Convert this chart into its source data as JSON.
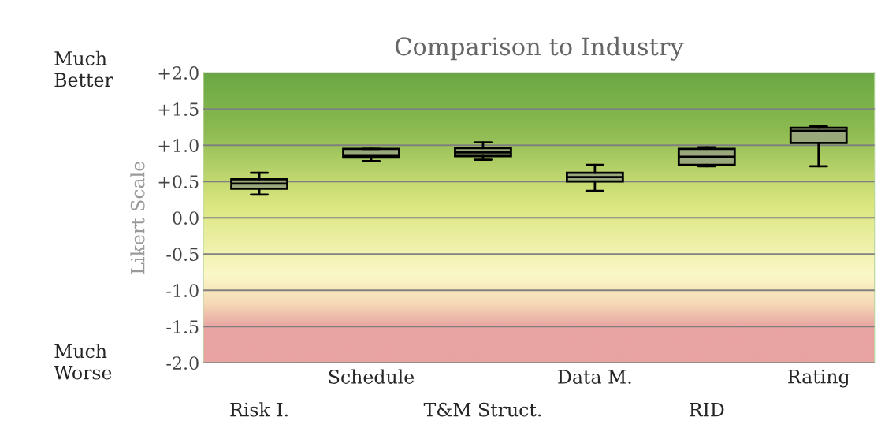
{
  "chart_data": {
    "type": "box",
    "title": "Comparison to Industry",
    "ylabel": "Likert Scale",
    "categories": [
      "Risk I.",
      "Schedule",
      "T&M Struct.",
      "Data M.",
      "RID",
      "Rating"
    ],
    "boxes": [
      {
        "low": 0.32,
        "q1": 0.4,
        "median": 0.47,
        "q3": 0.53,
        "high": 0.62
      },
      {
        "low": 0.78,
        "q1": 0.83,
        "median": 0.85,
        "q3": 0.95,
        "high": 0.95
      },
      {
        "low": 0.8,
        "q1": 0.85,
        "median": 0.9,
        "q3": 0.96,
        "high": 1.04
      },
      {
        "low": 0.37,
        "q1": 0.5,
        "median": 0.56,
        "q3": 0.62,
        "high": 0.73
      },
      {
        "low": 0.71,
        "q1": 0.73,
        "median": 0.84,
        "q3": 0.95,
        "high": 0.97
      },
      {
        "low": 0.71,
        "q1": 1.03,
        "median": 1.2,
        "q3": 1.24,
        "high": 1.26
      }
    ],
    "color": "#9aa97c",
    "ylim": [
      -2.0,
      2.0
    ],
    "yticks": [
      {
        "value": 2.0,
        "label": "+2.0"
      },
      {
        "value": 1.5,
        "label": "+1.5"
      },
      {
        "value": 1.0,
        "label": "+1.0"
      },
      {
        "value": 0.5,
        "label": "+0.5"
      },
      {
        "value": 0.0,
        "label": "0.0"
      },
      {
        "value": -0.5,
        "label": "-0.5"
      },
      {
        "value": -1.0,
        "label": "-1.0"
      },
      {
        "value": -1.5,
        "label": "-1.5"
      },
      {
        "value": -2.0,
        "label": "-2.0"
      }
    ],
    "grid": "y",
    "annotations": [
      "Much\nBetter",
      "Much\nWorse"
    ]
  }
}
